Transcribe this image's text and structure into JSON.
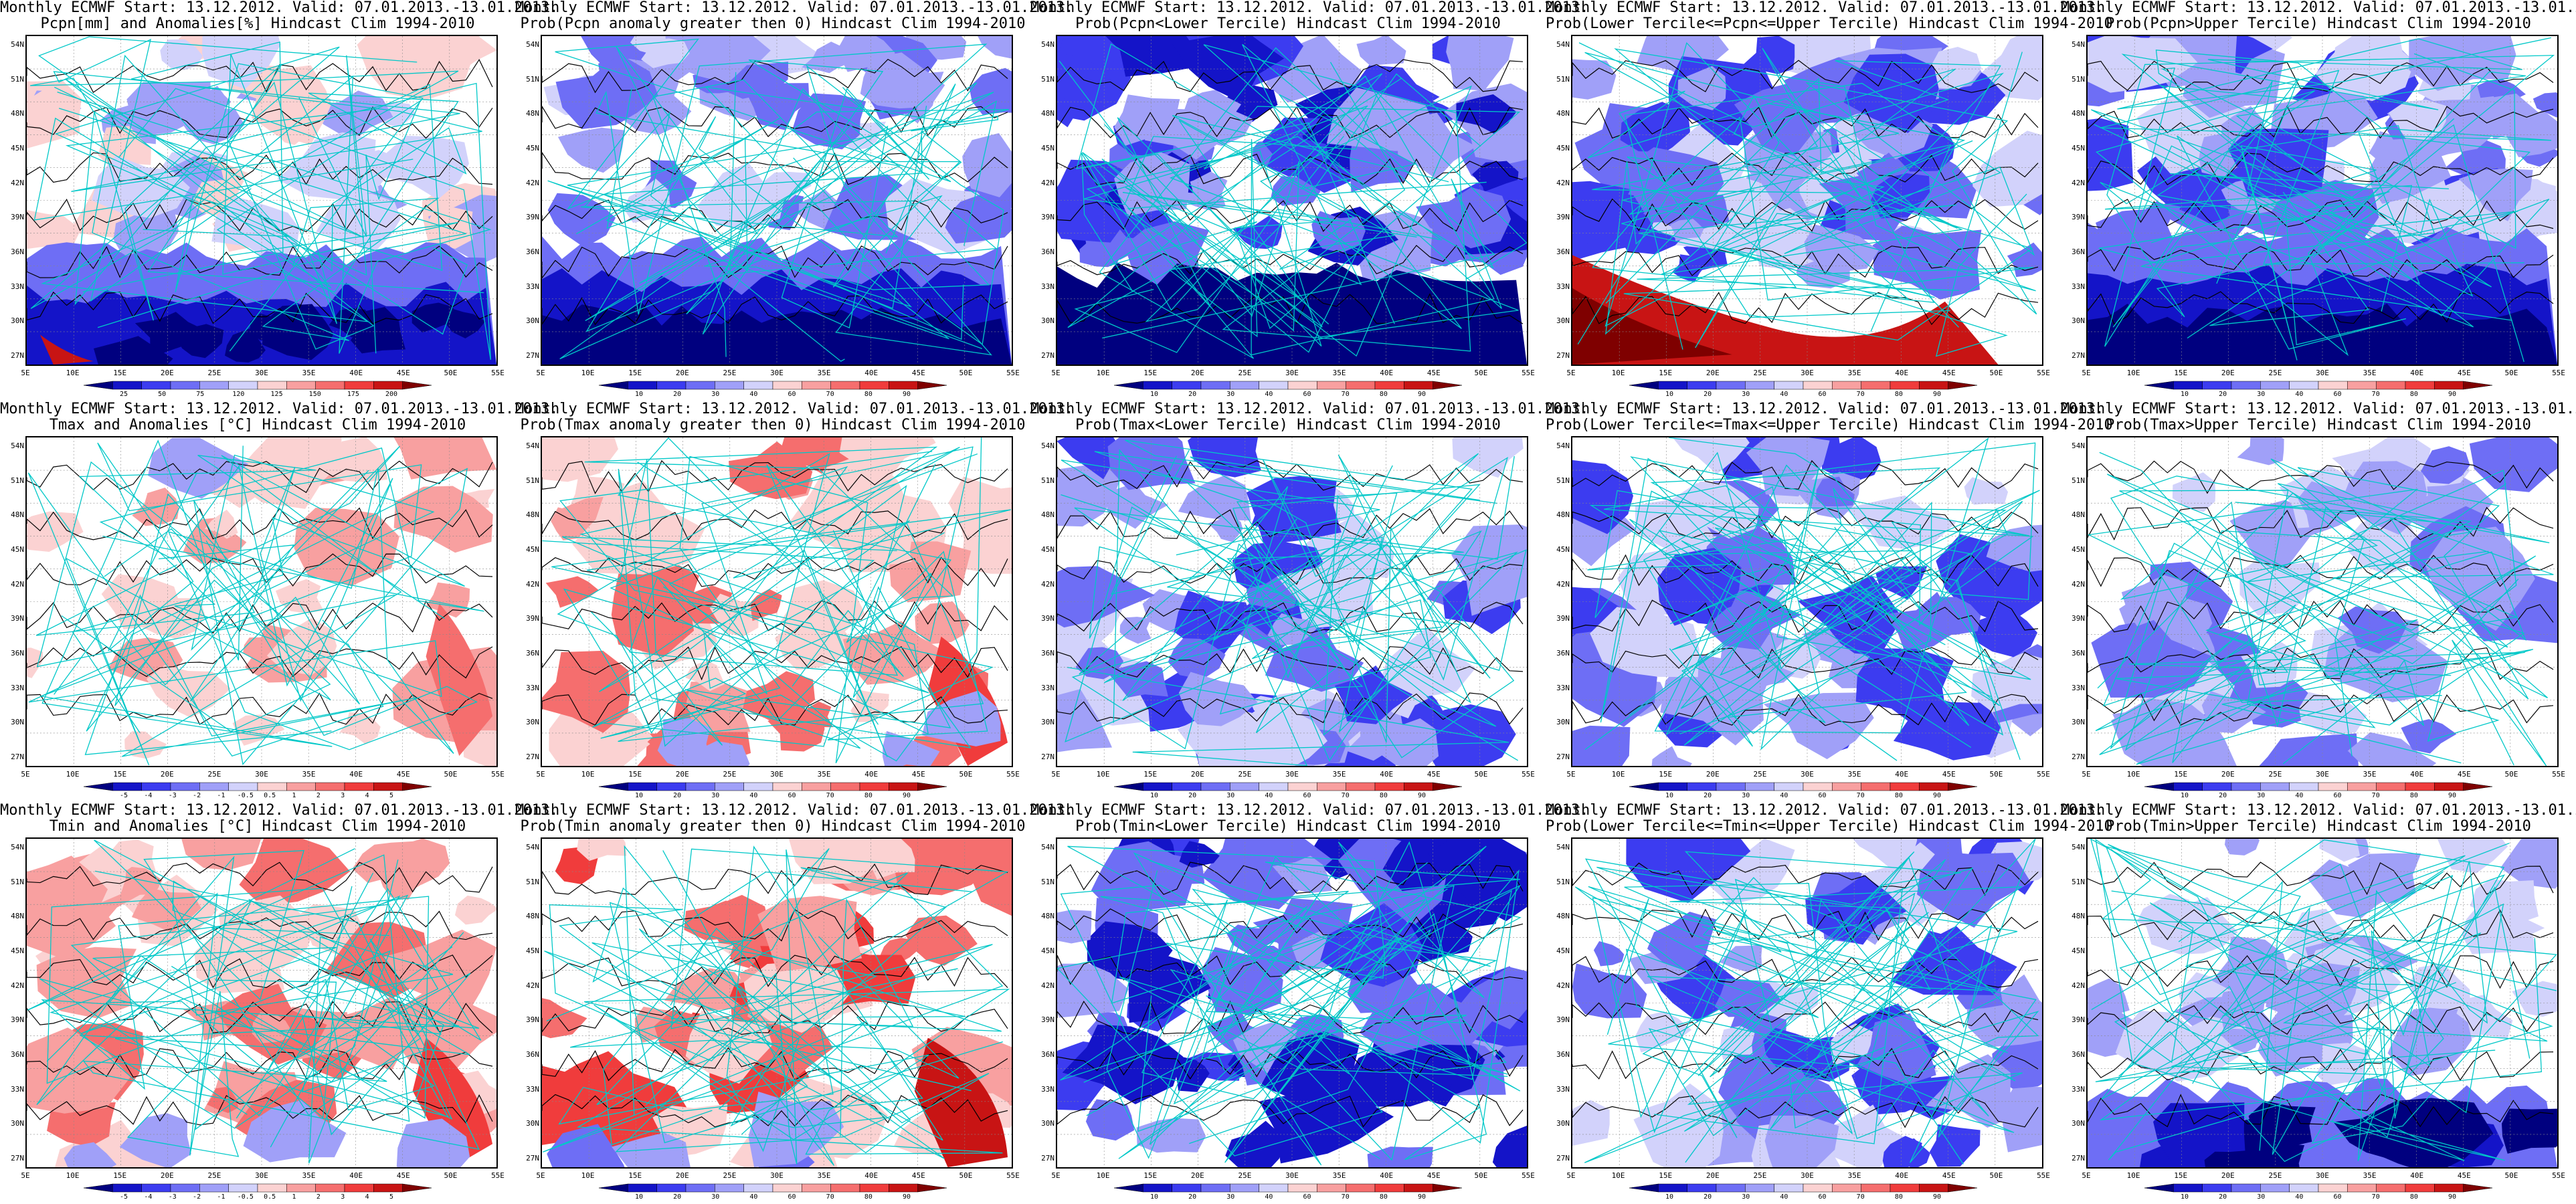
{
  "title_line1": "Monthly ECMWF Start: 13.12.2012. Valid: 07.01.2013.-13.01.2013.",
  "lat_labels": [
    "54N",
    "51N",
    "48N",
    "45N",
    "42N",
    "39N",
    "36N",
    "33N",
    "30N",
    "27N"
  ],
  "lon_labels": [
    "5E",
    "10E",
    "15E",
    "20E",
    "25E",
    "30E",
    "35E",
    "40E",
    "45E",
    "50E",
    "55E"
  ],
  "colorbars": {
    "anom_pcpn": [
      "25",
      "50",
      "75",
      "120",
      "125",
      "150",
      "175",
      "200"
    ],
    "anom_temp": [
      "-5",
      "-4",
      "-3",
      "-2",
      "-1",
      "-0.5",
      "0.5",
      "1",
      "2",
      "3",
      "4",
      "5"
    ],
    "prob": [
      "10",
      "20",
      "30",
      "40",
      "60",
      "70",
      "80",
      "90"
    ]
  },
  "colors": {
    "negative_scale": [
      "#00007f",
      "#1414c8",
      "#3c3cf0",
      "#6e6ef5",
      "#a0a0f8",
      "#d2d2fb"
    ],
    "positive_scale": [
      "#fbd2d2",
      "#f8a0a0",
      "#f56e6e",
      "#f03c3c",
      "#c81414",
      "#7f0000"
    ],
    "coast": "#00c8c8",
    "contour": "#000000"
  },
  "panels": [
    {
      "id": "pcpn-anom",
      "line2": "Pcpn[mm] and Anomalies[%] Hindcast Clim 1994-2010",
      "bar": "anom_pcpn",
      "pattern": "pcpn-anom"
    },
    {
      "id": "pcpn-prob-gt0",
      "line2": "Prob(Pcpn anomaly greater then 0) Hindcast Clim 1994-2010",
      "bar": "prob",
      "pattern": "pcpn-prob"
    },
    {
      "id": "pcpn-lower",
      "line2": "Prob(Pcpn<Lower Tercile) Hindcast Clim 1994-2010",
      "bar": "prob",
      "pattern": "pcpn-lower"
    },
    {
      "id": "pcpn-middle",
      "line2": "Prob(Lower Tercile<=Pcpn<=Upper Tercile) Hindcast Clim 1994-2010",
      "bar": "prob",
      "pattern": "pcpn-middle"
    },
    {
      "id": "pcpn-upper",
      "line2": "Prob(Pcpn>Upper Tercile) Hindcast Clim 1994-2010",
      "bar": "prob",
      "pattern": "pcpn-upper"
    },
    {
      "id": "tmax-anom",
      "line2": "Tmax and Anomalies [°C] Hindcast Clim 1994-2010",
      "bar": "anom_temp",
      "pattern": "warm-light"
    },
    {
      "id": "tmax-prob-gt0",
      "line2": "Prob(Tmax anomaly greater then 0) Hindcast Clim 1994-2010",
      "bar": "prob",
      "pattern": "warm-med"
    },
    {
      "id": "tmax-lower",
      "line2": "Prob(Tmax<Lower Tercile) Hindcast Clim 1994-2010",
      "bar": "prob",
      "pattern": "blue-med"
    },
    {
      "id": "tmax-middle",
      "line2": "Prob(Lower Tercile<=Tmax<=Upper Tercile) Hindcast Clim 1994-2010",
      "bar": "prob",
      "pattern": "blue-med"
    },
    {
      "id": "tmax-upper",
      "line2": "Prob(Tmax>Upper Tercile) Hindcast Clim 1994-2010",
      "bar": "prob",
      "pattern": "blue-light"
    },
    {
      "id": "tmin-anom",
      "line2": "Tmin and Anomalies [°C] Hindcast Clim 1994-2010",
      "bar": "anom_temp",
      "pattern": "warm-med"
    },
    {
      "id": "tmin-prob-gt0",
      "line2": "Prob(Tmin anomaly greater then 0) Hindcast Clim 1994-2010",
      "bar": "prob",
      "pattern": "warm-strong"
    },
    {
      "id": "tmin-lower",
      "line2": "Prob(Tmin<Lower Tercile) Hindcast Clim 1994-2010",
      "bar": "prob",
      "pattern": "blue-strong"
    },
    {
      "id": "tmin-middle",
      "line2": "Prob(Lower Tercile<=Tmin<=Upper Tercile) Hindcast Clim 1994-2010",
      "bar": "prob",
      "pattern": "blue-med"
    },
    {
      "id": "tmin-upper",
      "line2": "Prob(Tmin>Upper Tercile) Hindcast Clim 1994-2010",
      "bar": "prob",
      "pattern": "blue-south"
    }
  ]
}
